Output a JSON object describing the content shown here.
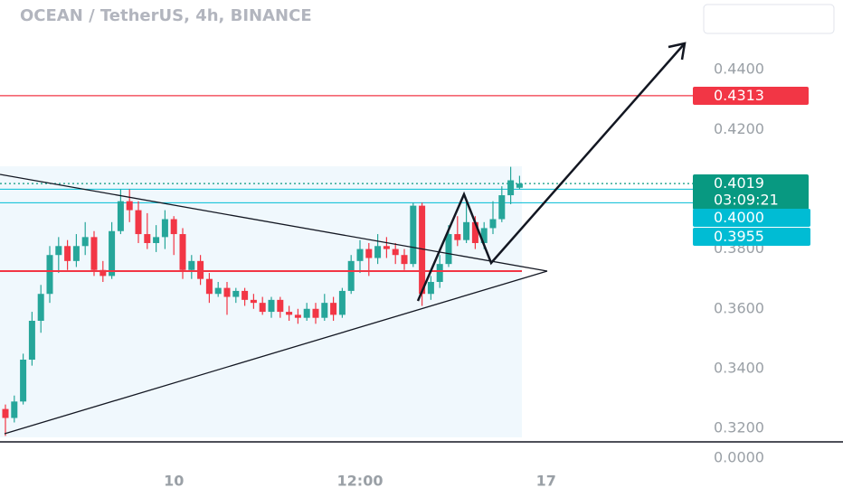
{
  "chart_data": {
    "type": "candlestick",
    "title": "OCEAN / TetherUS, 4h, BINANCE",
    "up_color": "#26a69a",
    "down_color": "#f23645",
    "xlim": [
      0,
      78
    ],
    "xticks": [
      {
        "value": 19,
        "label": "10"
      },
      {
        "value": 40,
        "label": "12:00"
      },
      {
        "value": 61,
        "label": "17"
      }
    ],
    "ylim": [
      0.3155,
      0.4633
    ],
    "yticks": [
      {
        "value": 0.44,
        "label": "0.4400"
      },
      {
        "value": 0.42,
        "label": "0.4200"
      },
      {
        "value": 0.38,
        "label": "0.3800"
      },
      {
        "value": 0.36,
        "label": "0.3600"
      },
      {
        "value": 0.34,
        "label": "0.3400"
      },
      {
        "value": 0.32,
        "label": "0.3200"
      }
    ],
    "lower_pane": {
      "yticks": [
        {
          "value": 0,
          "label": "0.0000"
        }
      ]
    },
    "countdown": "03:09:21",
    "price_labels": [
      {
        "value": 0.4313,
        "label": "0.4313",
        "color": "#f23645"
      },
      {
        "value": 0.4019,
        "label": "0.4019",
        "color": "#089981"
      },
      {
        "value": 0.4,
        "label": "0.4000",
        "color": "#00bcd4"
      },
      {
        "value": 0.3955,
        "label": "0.3955",
        "color": "#00bcd4"
      }
    ],
    "open": [
      0.3265,
      0.3235,
      0.329,
      0.343,
      0.356,
      0.365,
      0.378,
      0.381,
      0.376,
      0.381,
      0.384,
      0.373,
      0.371,
      0.386,
      0.396,
      0.393,
      0.385,
      0.382,
      0.384,
      0.39,
      0.385,
      0.373,
      0.376,
      0.37,
      0.365,
      0.367,
      0.364,
      0.366,
      0.363,
      0.362,
      0.359,
      0.363,
      0.359,
      0.358,
      0.357,
      0.36,
      0.357,
      0.362,
      0.358,
      0.366,
      0.376,
      0.38,
      0.377,
      0.381,
      0.38,
      0.378,
      0.375,
      0.3945,
      0.365,
      0.369,
      0.375,
      0.385,
      0.383,
      0.389,
      0.382,
      0.387,
      0.39,
      0.398,
      0.4005
    ],
    "high": [
      0.328,
      0.331,
      0.345,
      0.359,
      0.368,
      0.381,
      0.384,
      0.383,
      0.385,
      0.389,
      0.386,
      0.376,
      0.389,
      0.4,
      0.4,
      0.396,
      0.392,
      0.388,
      0.393,
      0.391,
      0.387,
      0.378,
      0.378,
      0.372,
      0.369,
      0.369,
      0.367,
      0.367,
      0.365,
      0.364,
      0.364,
      0.364,
      0.361,
      0.36,
      0.362,
      0.362,
      0.365,
      0.364,
      0.367,
      0.378,
      0.383,
      0.382,
      0.385,
      0.384,
      0.382,
      0.38,
      0.3955,
      0.3955,
      0.371,
      0.378,
      0.388,
      0.391,
      0.396,
      0.391,
      0.389,
      0.396,
      0.401,
      0.4075,
      0.4045
    ],
    "low": [
      0.3175,
      0.322,
      0.328,
      0.341,
      0.352,
      0.362,
      0.372,
      0.373,
      0.374,
      0.378,
      0.371,
      0.369,
      0.37,
      0.385,
      0.389,
      0.382,
      0.38,
      0.379,
      0.38,
      0.378,
      0.37,
      0.37,
      0.368,
      0.362,
      0.364,
      0.358,
      0.362,
      0.361,
      0.36,
      0.358,
      0.357,
      0.357,
      0.356,
      0.355,
      0.356,
      0.355,
      0.356,
      0.356,
      0.357,
      0.365,
      0.372,
      0.371,
      0.375,
      0.377,
      0.375,
      0.373,
      0.374,
      0.361,
      0.363,
      0.367,
      0.374,
      0.381,
      0.382,
      0.38,
      0.38,
      0.385,
      0.389,
      0.395,
      0.4
    ],
    "close": [
      0.3235,
      0.329,
      0.343,
      0.356,
      0.365,
      0.378,
      0.381,
      0.376,
      0.381,
      0.384,
      0.373,
      0.371,
      0.386,
      0.396,
      0.393,
      0.385,
      0.382,
      0.384,
      0.39,
      0.385,
      0.373,
      0.376,
      0.37,
      0.365,
      0.367,
      0.364,
      0.366,
      0.363,
      0.362,
      0.359,
      0.363,
      0.359,
      0.358,
      0.357,
      0.36,
      0.357,
      0.362,
      0.358,
      0.366,
      0.376,
      0.38,
      0.377,
      0.381,
      0.38,
      0.378,
      0.375,
      0.3945,
      0.365,
      0.369,
      0.375,
      0.385,
      0.383,
      0.389,
      0.382,
      0.387,
      0.39,
      0.398,
      0.403,
      0.4019
    ]
  }
}
